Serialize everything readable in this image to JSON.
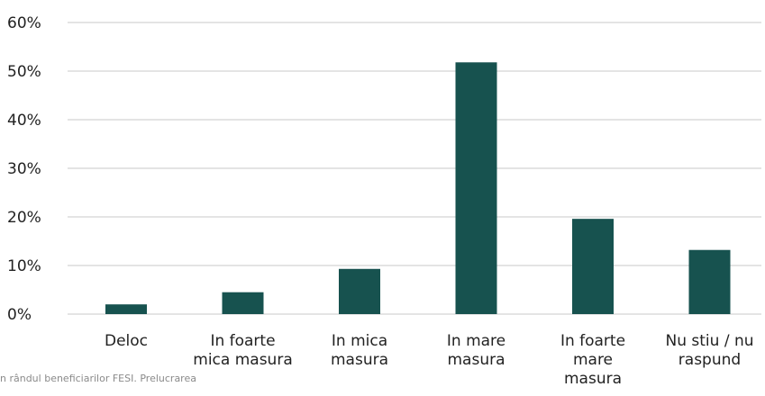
{
  "chart_data": {
    "type": "bar",
    "categories": [
      [
        "Deloc"
      ],
      [
        "In foarte",
        "mica masura"
      ],
      [
        "In mica",
        "masura"
      ],
      [
        "In mare",
        "masura"
      ],
      [
        "In foarte",
        "mare",
        "masura"
      ],
      [
        "Nu stiu / nu",
        "raspund"
      ]
    ],
    "values": [
      2,
      4.5,
      9.3,
      51.8,
      19.6,
      13.2
    ],
    "ylim": [
      0,
      60
    ],
    "yticks": [
      0,
      10,
      20,
      30,
      40,
      50,
      60
    ],
    "ytick_labels": [
      "0%",
      "10%",
      "20%",
      "30%",
      "40%",
      "50%",
      "60%"
    ],
    "grid": true,
    "bar_color": "#17524f",
    "grid_color": "#c8c8c8"
  },
  "source_note": "n rândul beneficiarilor FESI. Prelucrarea"
}
